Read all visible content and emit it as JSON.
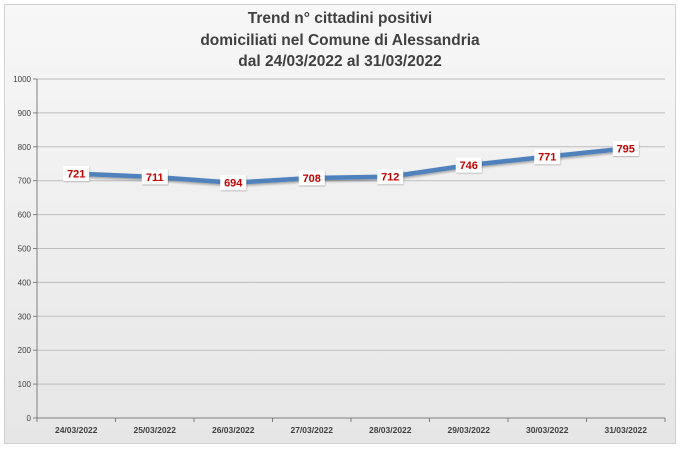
{
  "chart_data": {
    "type": "line",
    "title_lines": [
      "Trend n° cittadini positivi",
      "domiciliati nel Comune di Alessandria",
      "dal 24/03/2022 al 31/03/2022"
    ],
    "categories": [
      "24/03/2022",
      "25/03/2022",
      "26/03/2022",
      "27/03/2022",
      "28/03/2022",
      "29/03/2022",
      "30/03/2022",
      "31/03/2022"
    ],
    "series": [
      {
        "values": [
          721,
          711,
          694,
          708,
          712,
          746,
          771,
          795
        ]
      }
    ],
    "ylim": [
      0,
      1000
    ],
    "yticks": [
      0,
      100,
      200,
      300,
      400,
      500,
      600,
      700,
      800,
      900,
      1000
    ],
    "grid": true,
    "legend": "none",
    "line_color": "#4f81bd",
    "label_color": "#c00000"
  }
}
